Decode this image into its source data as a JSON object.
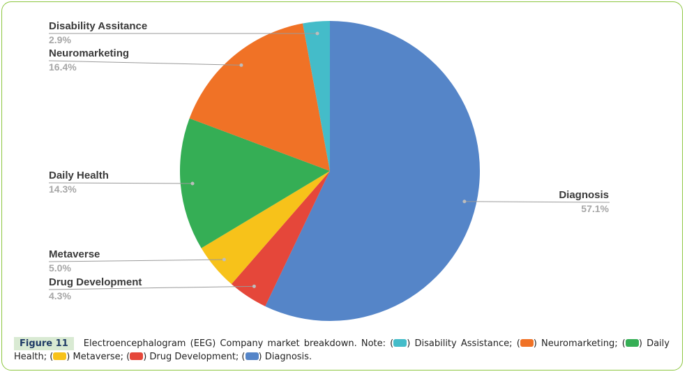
{
  "chart_data": {
    "type": "pie",
    "title": "",
    "slices": [
      {
        "label": "Diagnosis",
        "pct_label": "57.1%",
        "value": 57.1,
        "color": "#5585c8"
      },
      {
        "label": "Drug Development",
        "pct_label": "4.3%",
        "value": 4.3,
        "color": "#e5473a"
      },
      {
        "label": "Metaverse",
        "pct_label": "5.0%",
        "value": 5.0,
        "color": "#f7c21a"
      },
      {
        "label": "Daily Health",
        "pct_label": "14.3%",
        "value": 14.3,
        "color": "#35ae55"
      },
      {
        "label": "Neuromarketing",
        "pct_label": "16.4%",
        "value": 16.4,
        "color": "#f07226"
      },
      {
        "label": "Disability Assitance",
        "pct_label": "2.9%",
        "value": 2.9,
        "color": "#44bcc9"
      }
    ],
    "start": "12 o'clock",
    "direction": "clockwise"
  },
  "caption": {
    "figure_label": "Figure 11",
    "text_intro": "Electroencephalogram (EEG) Company market breakdown. Note: (",
    "items": [
      {
        "label": "Disability Assistance",
        "color": "#44bcc9"
      },
      {
        "label": "Neuromarketing",
        "color": "#f07226"
      },
      {
        "label": "Daily Health",
        "color": "#35ae55"
      },
      {
        "label": "Metaverse",
        "color": "#f7c21a"
      },
      {
        "label": "Drug Development",
        "color": "#e5473a"
      },
      {
        "label": "Diagnosis",
        "color": "#5585c8"
      }
    ]
  }
}
